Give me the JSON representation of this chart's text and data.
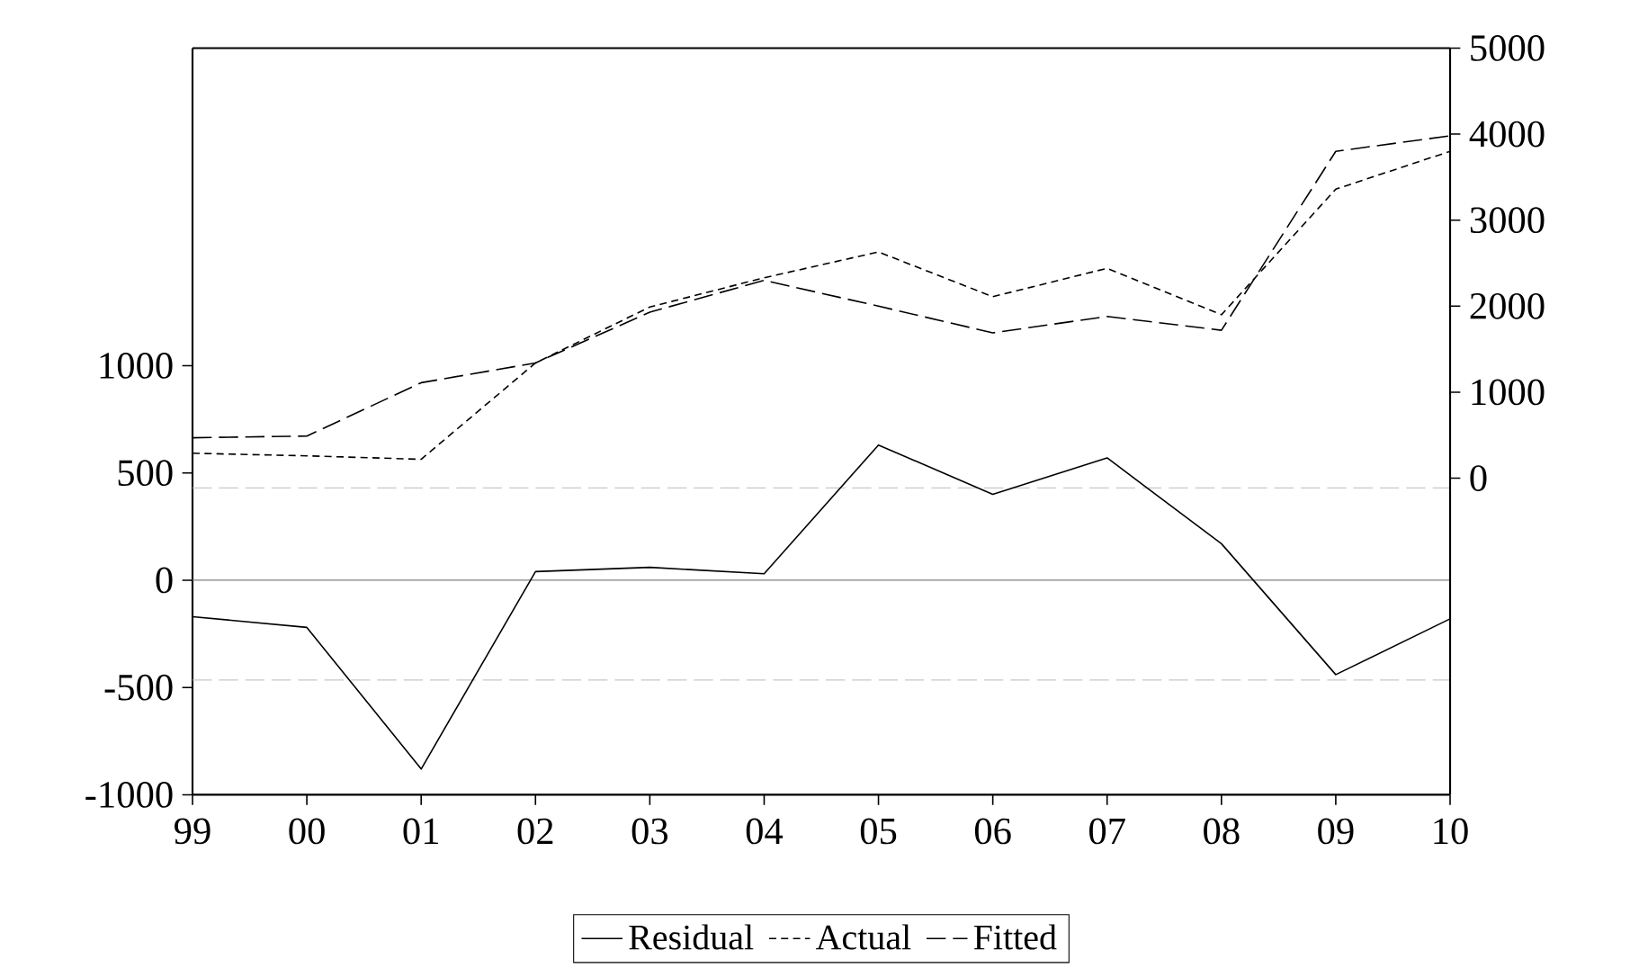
{
  "chart_data": {
    "type": "line",
    "categories": [
      "99",
      "00",
      "01",
      "02",
      "03",
      "04",
      "05",
      "06",
      "07",
      "08",
      "09",
      "10"
    ],
    "series": [
      {
        "name": "Residual",
        "color": "#000000",
        "line_style": "solid",
        "axis": "y",
        "values": [
          -170,
          -220,
          -880,
          40,
          60,
          30,
          630,
          400,
          570,
          170,
          -440,
          -180
        ]
      },
      {
        "name": "Actual",
        "color": "#000000",
        "line_style": "dotted",
        "axis": "y2",
        "values": [
          290,
          260,
          220,
          1340,
          1990,
          2330,
          2630,
          2110,
          2440,
          1900,
          3360,
          3800
        ]
      },
      {
        "name": "Fitted",
        "color": "#000000",
        "line_style": "dashed",
        "axis": "y2",
        "values": [
          470,
          490,
          1110,
          1340,
          1930,
          2300,
          2000,
          1690,
          1880,
          1720,
          3800,
          3980
        ]
      }
    ],
    "ylim": [
      -1000,
      2480
    ],
    "yticks": [
      -1000,
      -500,
      0,
      500,
      1000
    ],
    "y2lim": [
      -3680,
      5000
    ],
    "y2ticks": [
      0,
      1000,
      2000,
      3000,
      4000,
      5000
    ],
    "ref_lines": [
      {
        "axis": "y",
        "value": 0,
        "color": "#808080",
        "line_style": "solid"
      },
      {
        "axis": "y",
        "value": 430,
        "color": "#c8c8c8",
        "line_style": "dashed"
      },
      {
        "axis": "y",
        "value": -465,
        "color": "#c8c8c8",
        "line_style": "dashed"
      }
    ],
    "legend": "bottom",
    "grid": false
  }
}
